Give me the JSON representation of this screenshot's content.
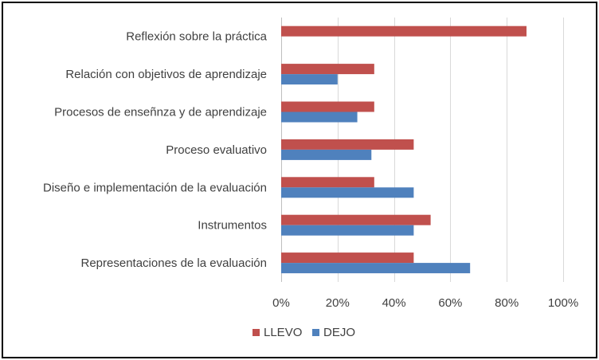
{
  "chart_data": {
    "type": "bar",
    "orientation": "horizontal",
    "categories": [
      "Reflexión sobre la práctica",
      "Relación con objetivos de aprendizaje",
      "Procesos de enseñnza y de aprendizaje",
      "Proceso evaluativo",
      "Diseño e implementación de la evaluación",
      "Instrumentos",
      "Representaciones de la evaluación"
    ],
    "series": [
      {
        "name": "LLEVO",
        "color": "#c0504d",
        "values": [
          87,
          33,
          33,
          47,
          33,
          53,
          47
        ]
      },
      {
        "name": "DEJO",
        "color": "#4f81bd",
        "values": [
          0,
          20,
          27,
          32,
          47,
          47,
          67
        ]
      }
    ],
    "xlim": [
      0,
      100
    ],
    "xticks": [
      "0%",
      "20%",
      "40%",
      "60%",
      "80%",
      "100%"
    ],
    "grid": true,
    "legend_position": "bottom",
    "title": "",
    "xlabel": "",
    "ylabel": ""
  }
}
